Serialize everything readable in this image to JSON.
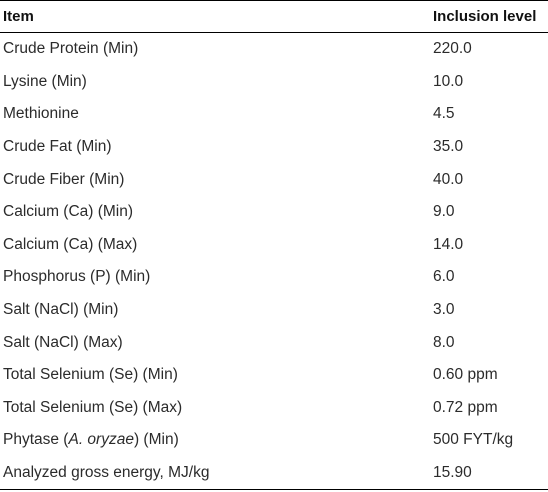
{
  "table": {
    "headers": {
      "item": "Item",
      "level": "Inclusion level"
    },
    "rows": [
      {
        "item": "Crude Protein (Min)",
        "level": "220.0"
      },
      {
        "item": "Lysine (Min)",
        "level": "10.0"
      },
      {
        "item": "Methionine",
        "level": "4.5"
      },
      {
        "item": "Crude Fat (Min)",
        "level": "35.0"
      },
      {
        "item": "Crude Fiber (Min)",
        "level": "40.0"
      },
      {
        "item": "Calcium (Ca) (Min)",
        "level": "9.0"
      },
      {
        "item": "Calcium (Ca) (Max)",
        "level": "14.0"
      },
      {
        "item": "Phosphorus (P) (Min)",
        "level": "6.0"
      },
      {
        "item": "Salt (NaCl) (Min)",
        "level": "3.0"
      },
      {
        "item": "Salt (NaCl) (Max)",
        "level": "8.0"
      },
      {
        "item": "Total Selenium (Se) (Min)",
        "level": "0.60 ppm"
      },
      {
        "item": "Total Selenium (Se) (Max)",
        "level": "0.72 ppm"
      },
      {
        "item_prefix": "Phytase (",
        "item_italic": "A. oryzae",
        "item_suffix": ") (Min)",
        "level": "500 FYT/kg"
      },
      {
        "item": "Analyzed gross energy, MJ/kg",
        "level": "15.90"
      }
    ]
  }
}
